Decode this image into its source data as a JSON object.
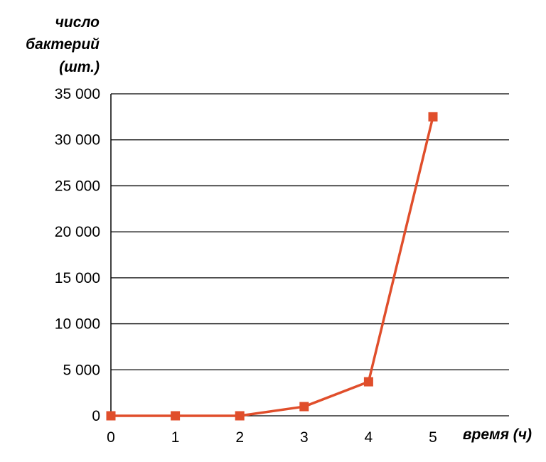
{
  "chart_data": {
    "type": "line",
    "ylabel_lines": [
      "число",
      "бактерий",
      "(шт.)"
    ],
    "xlabel": "время (ч)",
    "x": [
      0,
      1,
      2,
      3,
      4,
      5
    ],
    "x_tick_labels": [
      "0",
      "1",
      "2",
      "3",
      "4",
      "5"
    ],
    "ylim": [
      0,
      35000
    ],
    "y_ticks": [
      0,
      5000,
      10000,
      15000,
      20000,
      25000,
      30000,
      35000
    ],
    "y_tick_labels": [
      "0",
      "5 000",
      "10 000",
      "15 000",
      "20 000",
      "25 000",
      "30 000",
      "35 000"
    ],
    "series": [
      {
        "values": [
          0,
          0,
          0,
          1000,
          3700,
          32500
        ],
        "color": "#e04e2b",
        "marker": "square"
      }
    ],
    "grid": true
  }
}
